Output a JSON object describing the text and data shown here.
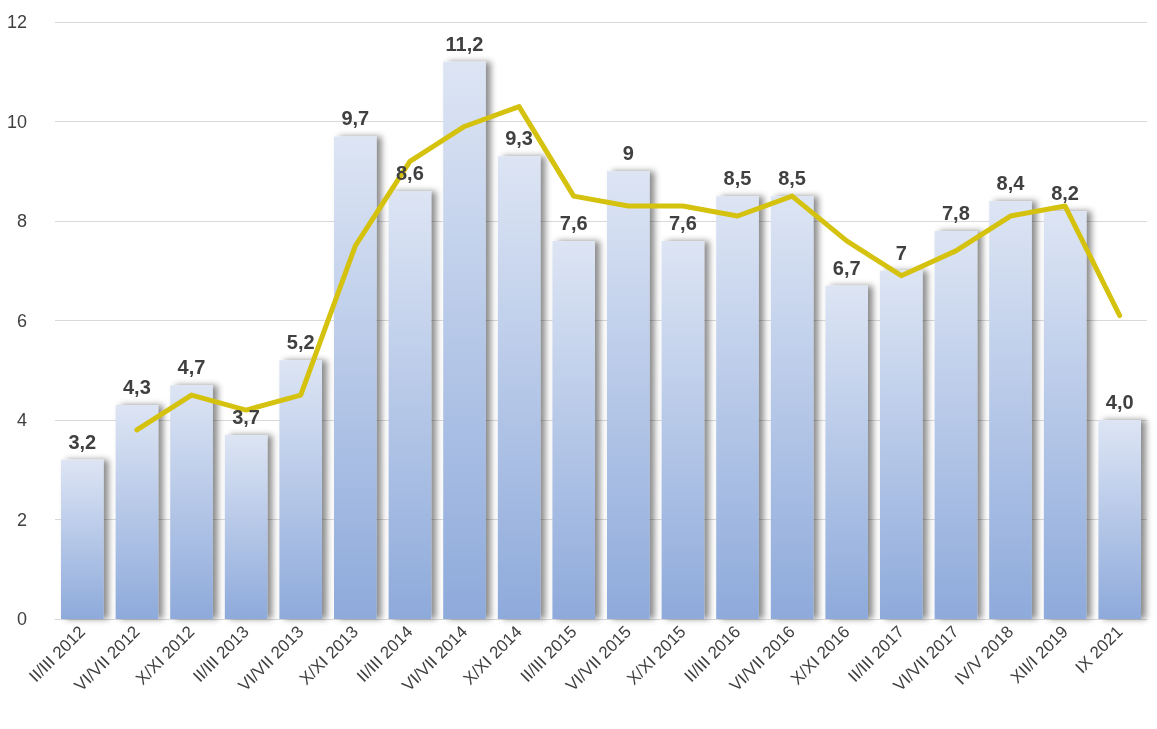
{
  "chart_data": {
    "type": "bar",
    "categories": [
      "II/III 2012",
      "VI/VII 2012",
      "X/XI 2012",
      "II/III 2013",
      "VI/VII 2013",
      "X/XI 2013",
      "II/III 2014",
      "VI/VII 2014",
      "X/XI 2014",
      "II/III 2015",
      "VI/VII 2015",
      "X/XI 2015",
      "II/III 2016",
      "VI/VII 2016",
      "X/XI 2016",
      "II/III 2017",
      "VI/VII 2017",
      "IV/V 2018",
      "XII/I 2019",
      "IX 2021"
    ],
    "series": [
      {
        "color": "#8eaadb",
        "values": [
          3.2,
          4.3,
          4.7,
          3.7,
          5.2,
          9.7,
          8.6,
          11.2,
          9.3,
          7.6,
          9,
          7.6,
          8.5,
          8.5,
          6.7,
          7,
          7.8,
          8.4,
          8.2,
          4.0
        ],
        "value_labels": [
          "3,2",
          "4,3",
          "4,7",
          "3,7",
          "5,2",
          "9,7",
          "8,6",
          "11,2",
          "9,3",
          "7,6",
          "9",
          "7,6",
          "8,5",
          "8,5",
          "6,7",
          "7",
          "7,8",
          "8,4",
          "8,2",
          "4,0"
        ]
      },
      {
        "type": "line",
        "color": "#d4c20f",
        "values": [
          null,
          3.8,
          4.5,
          4.2,
          4.5,
          7.5,
          9.2,
          9.9,
          10.3,
          8.5,
          8.3,
          8.3,
          8.1,
          8.5,
          7.6,
          6.9,
          7.4,
          8.1,
          8.3,
          6.1
        ]
      }
    ],
    "ylim": [
      0,
      12
    ],
    "yticks": [
      0,
      2,
      4,
      6,
      8,
      10,
      12
    ],
    "grid": "y",
    "marker": "none",
    "line_style": "solid"
  }
}
